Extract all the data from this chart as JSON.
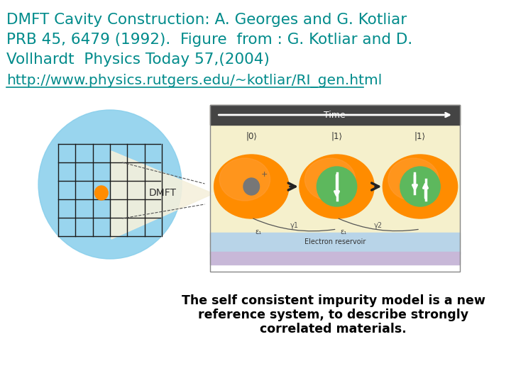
{
  "title_line1": "DMFT Cavity Construction: A. Georges and G. Kotliar",
  "title_line2": "PRB 45, 6479 (1992).  Figure  from : G. Kotliar and D.",
  "title_line3": "Vollhardt  Physics Today 57,(2004)",
  "url": "http://www.physics.rutgers.edu/~kotliar/RI_gen.html",
  "caption_line1": "The self consistent impurity model is a new",
  "caption_line2": "reference system, to describe strongly",
  "caption_line3": "correlated materials.",
  "title_color": "#008B8B",
  "url_color": "#008B8B",
  "caption_color": "#000000",
  "bg_color": "#ffffff",
  "title_fontsize": 15.5,
  "url_fontsize": 14.5,
  "caption_fontsize": 12.5
}
